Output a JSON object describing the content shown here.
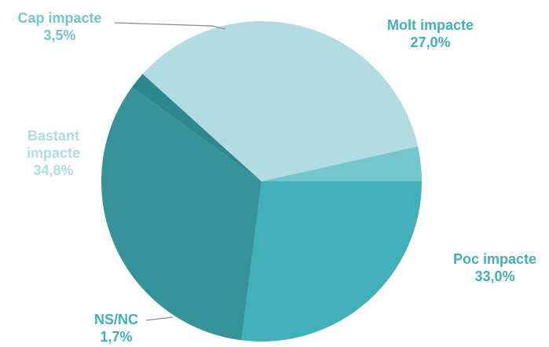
{
  "chart_data": {
    "type": "pie",
    "title": "",
    "slices": [
      {
        "label": "Molt impacte",
        "value": 27.0,
        "display": "27,0%",
        "color": "#41b0b9",
        "label_color": "#41b0b9"
      },
      {
        "label": "Poc impacte",
        "value": 33.0,
        "display": "33,0%",
        "color": "#36939a",
        "label_color": "#41b0b9"
      },
      {
        "label": "NS/NC",
        "value": 1.7,
        "display": "1,7%",
        "color": "#2d8890",
        "label_color": "#41b0b9"
      },
      {
        "label": "Bastant impacte",
        "value": 34.8,
        "display": "34,8%",
        "color": "#b2dce1",
        "label_color": "#b2dce1"
      },
      {
        "label": "Cap impacte",
        "value": 3.5,
        "display": "3,5%",
        "color": "#74c5cc",
        "label_color": "#74c5cc"
      }
    ],
    "start_angle_deg": 0,
    "direction": "clockwise",
    "legend": "none"
  }
}
